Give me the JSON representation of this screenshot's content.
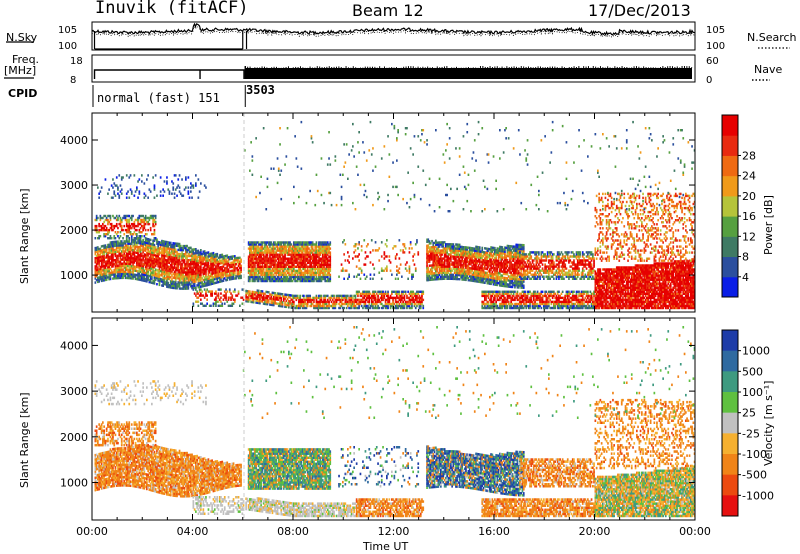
{
  "header": {
    "station": "Inuvik (fitACF)",
    "beam": "Beam 12",
    "date": "17/Dec/2013"
  },
  "left_labels": {
    "nsky": "N.Sky",
    "freq": "Freq.",
    "freq_unit": "[MHz]",
    "cpid": "CPID"
  },
  "right_labels": {
    "nsearch": "N.Search",
    "nave": "Nave"
  },
  "cpid_segments": [
    {
      "label": "normal (fast) 151",
      "start_hour": 0,
      "end_hour": 6.1
    },
    {
      "label": "3503",
      "start_hour": 6.1,
      "end_hour": 24
    }
  ],
  "chart_data": [
    {
      "type": "line",
      "panel": "noise",
      "y_left_ticks": [
        "10^5",
        "10^0"
      ],
      "y_right_ticks": [
        "10^5",
        "10^0"
      ],
      "series": [
        {
          "name": "N.Sky",
          "style": "solid"
        },
        {
          "name": "N.Search",
          "style": "dotted"
        }
      ]
    },
    {
      "type": "line",
      "panel": "frequency_nave",
      "y_left_ticks": [
        "18",
        "8"
      ],
      "y_right_ticks": [
        "60",
        "0"
      ],
      "series": [
        {
          "name": "Freq.",
          "style": "solid"
        },
        {
          "name": "Nave",
          "style": "dotted"
        }
      ]
    },
    {
      "type": "heatmap",
      "panel": "power",
      "ylabel": "Slant Range [km]",
      "xlim_hours": [
        0,
        24
      ],
      "ylim_km": [
        180,
        4600
      ],
      "y_ticks": [
        1000,
        2000,
        3000,
        4000
      ],
      "colorbar": {
        "label": "Power [dB]",
        "ticks": [
          "4",
          "8",
          "12",
          "16",
          "20",
          "24",
          "28"
        ],
        "colors": [
          "#0a1ee6",
          "#2b4f9e",
          "#3f7a64",
          "#56a040",
          "#b5c43a",
          "#f09a1a",
          "#ef6a12",
          "#e82a10",
          "#e60000"
        ]
      }
    },
    {
      "type": "heatmap",
      "panel": "velocity",
      "ylabel": "Slant Range [km]",
      "xlabel": "Time UT",
      "xlim_hours": [
        0,
        24
      ],
      "ylim_km": [
        180,
        4600
      ],
      "y_ticks": [
        1000,
        2000,
        3000,
        4000
      ],
      "x_ticks": [
        "00:00",
        "04:00",
        "08:00",
        "12:00",
        "16:00",
        "20:00",
        "00:00"
      ],
      "colorbar": {
        "label": "Velocity [m s⁻¹]",
        "ticks": [
          "1000",
          "500",
          "100",
          "25",
          "-25",
          "-100",
          "-500",
          "-1000"
        ],
        "colors": [
          "#1e3ca8",
          "#2f6aa0",
          "#3e9a80",
          "#5fc040",
          "#c0c0c0",
          "#f5b030",
          "#f08418",
          "#ec4a10",
          "#e61010"
        ]
      }
    }
  ]
}
